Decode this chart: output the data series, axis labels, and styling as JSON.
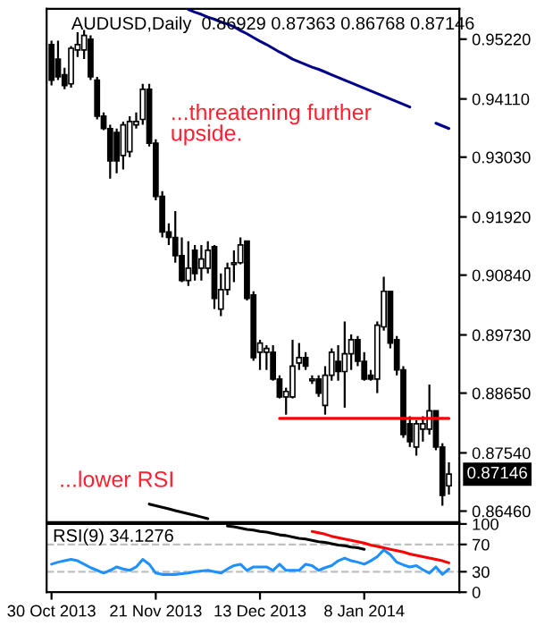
{
  "chart_data": [
    {
      "type": "candlestick",
      "title": "AUDUSD,Daily  0.86929 0.87363 0.86768 0.87146",
      "ohlc": [
        [
          0.9512,
          0.9519,
          0.9436,
          0.9446
        ],
        [
          0.9485,
          0.9519,
          0.9446,
          0.9452
        ],
        [
          0.9456,
          0.9469,
          0.9429,
          0.9436
        ],
        [
          0.9439,
          0.9509,
          0.9432,
          0.9505
        ],
        [
          0.9502,
          0.9535,
          0.9489,
          0.9512
        ],
        [
          0.9502,
          0.9539,
          0.9485,
          0.9529
        ],
        [
          0.9522,
          0.9529,
          0.9446,
          0.9452
        ],
        [
          0.9446,
          0.9452,
          0.9373,
          0.9379
        ],
        [
          0.9379,
          0.9386,
          0.9353,
          0.9356
        ],
        [
          0.9356,
          0.9363,
          0.9263,
          0.9296
        ],
        [
          0.9349,
          0.9356,
          0.9273,
          0.9296
        ],
        [
          0.9306,
          0.9369,
          0.928,
          0.9363
        ],
        [
          0.9313,
          0.9379,
          0.9303,
          0.9369
        ],
        [
          0.9363,
          0.9386,
          0.9356,
          0.9369
        ],
        [
          0.9373,
          0.9439,
          0.9363,
          0.9429
        ],
        [
          0.9429,
          0.9439,
          0.9323,
          0.9329
        ],
        [
          0.9329,
          0.9336,
          0.9223,
          0.923
        ],
        [
          0.923,
          0.924,
          0.9154,
          0.9164
        ],
        [
          0.9164,
          0.918,
          0.914,
          0.9154
        ],
        [
          0.9154,
          0.9203,
          0.9107,
          0.912
        ],
        [
          0.912,
          0.9154,
          0.9071,
          0.9074
        ],
        [
          0.9074,
          0.9147,
          0.9064,
          0.9097
        ],
        [
          0.913,
          0.914,
          0.9074,
          0.9087
        ],
        [
          0.9097,
          0.914,
          0.9074,
          0.9114
        ],
        [
          0.9097,
          0.9147,
          0.9087,
          0.913
        ],
        [
          0.9137,
          0.914,
          0.9021,
          0.9041
        ],
        [
          0.9021,
          0.9087,
          0.9008,
          0.9057
        ],
        [
          0.9057,
          0.9107,
          0.9047,
          0.9097
        ],
        [
          0.9104,
          0.913,
          0.9071,
          0.9107
        ],
        [
          0.9107,
          0.9154,
          0.9104,
          0.914
        ],
        [
          0.9147,
          0.9147,
          0.9037,
          0.9041
        ],
        [
          0.9047,
          0.9054,
          0.8925,
          0.8931
        ],
        [
          0.8941,
          0.8964,
          0.8908,
          0.8958
        ],
        [
          0.8941,
          0.8954,
          0.8908,
          0.8948
        ],
        [
          0.8941,
          0.8954,
          0.8888,
          0.8891
        ],
        [
          0.8891,
          0.8898,
          0.8855,
          0.8858
        ],
        [
          0.8858,
          0.8875,
          0.8825,
          0.8868
        ],
        [
          0.8858,
          0.8964,
          0.8855,
          0.8915
        ],
        [
          0.8921,
          0.8958,
          0.8908,
          0.8931
        ],
        [
          0.8931,
          0.8941,
          0.8908,
          0.8915
        ],
        [
          0.8888,
          0.8898,
          0.8882,
          0.8891
        ],
        [
          0.8891,
          0.8898,
          0.8858,
          0.8865
        ],
        [
          0.8842,
          0.8915,
          0.8825,
          0.8898
        ],
        [
          0.8898,
          0.8948,
          0.8888,
          0.8941
        ],
        [
          0.8924,
          0.8954,
          0.8888,
          0.8905
        ],
        [
          0.8905,
          0.8998,
          0.8838,
          0.8938
        ],
        [
          0.8938,
          0.8974,
          0.8908,
          0.8964
        ],
        [
          0.8964,
          0.8971,
          0.8915,
          0.8924
        ],
        [
          0.8924,
          0.8941,
          0.8888,
          0.8891
        ],
        [
          0.8898,
          0.8908,
          0.8888,
          0.8891
        ],
        [
          0.8891,
          0.8998,
          0.8865,
          0.8991
        ],
        [
          0.8988,
          0.9081,
          0.8981,
          0.9054
        ],
        [
          0.9054,
          0.9054,
          0.8948,
          0.8958
        ],
        [
          0.8964,
          0.8971,
          0.8898,
          0.8908
        ],
        [
          0.8908,
          0.8915,
          0.8782,
          0.8788
        ],
        [
          0.8808,
          0.8822,
          0.8765,
          0.8775
        ],
        [
          0.8765,
          0.8815,
          0.8749,
          0.8808
        ],
        [
          0.8798,
          0.8822,
          0.8775,
          0.8808
        ],
        [
          0.8798,
          0.8881,
          0.8788,
          0.8832
        ],
        [
          0.8832,
          0.8832,
          0.8759,
          0.8765
        ],
        [
          0.8765,
          0.8772,
          0.8656,
          0.8675
        ],
        [
          0.86929,
          0.87363,
          0.86768,
          0.87146
        ]
      ],
      "ylim": [
        0.86256,
        0.95784
      ],
      "yticks": [
        {
          "value": 0.9522,
          "label": "0.95220"
        },
        {
          "value": 0.9411,
          "label": "0.94110"
        },
        {
          "value": 0.9303,
          "label": "0.93030"
        },
        {
          "value": 0.9192,
          "label": "0.91920"
        },
        {
          "value": 0.9084,
          "label": "0.90840"
        },
        {
          "value": 0.8973,
          "label": "0.89730"
        },
        {
          "value": 0.8865,
          "label": "0.88650"
        },
        {
          "value": 0.8754,
          "label": "0.87540"
        },
        {
          "value": 0.8646,
          "label": "0.86460"
        }
      ],
      "tick_labels": "y",
      "series": [
        {
          "type": "line",
          "color": "#00008b",
          "values": [
            null,
            null,
            null,
            null,
            null,
            null,
            null,
            null,
            null,
            null,
            null,
            null,
            null,
            null,
            null,
            null,
            null,
            null,
            null,
            null,
            null,
            0.9577,
            0.9572,
            0.9568,
            0.9563,
            0.9559,
            0.9554,
            0.955,
            0.9545,
            0.9538,
            0.9532,
            0.9525,
            0.9518,
            0.9512,
            0.9505,
            0.9498,
            0.9492,
            0.9485,
            0.948,
            0.9475,
            0.947,
            0.9466,
            0.9461,
            0.9456,
            0.9451,
            0.9446,
            0.9441,
            0.9436,
            0.9431,
            0.9426,
            0.9421,
            0.9416,
            0.9411,
            0.9406,
            0.9401,
            0.9396,
            null,
            null,
            null,
            null,
            null,
            null
          ]
        },
        {
          "type": "line",
          "color": "#00008b",
          "values": [
            null,
            null,
            null,
            null,
            null,
            null,
            null,
            null,
            null,
            null,
            null,
            null,
            null,
            null,
            null,
            null,
            null,
            null,
            null,
            null,
            null,
            null,
            null,
            null,
            null,
            null,
            null,
            null,
            null,
            null,
            null,
            null,
            null,
            null,
            null,
            null,
            null,
            null,
            null,
            null,
            null,
            null,
            null,
            null,
            null,
            null,
            null,
            null,
            null,
            null,
            null,
            null,
            null,
            null,
            null,
            null,
            null,
            null,
            null,
            0.9366,
            0.9361,
            0.9356
          ]
        },
        {
          "type": "line",
          "color": "#ff0000",
          "values": [
            null,
            null,
            null,
            null,
            null,
            null,
            null,
            null,
            null,
            null,
            null,
            null,
            null,
            null,
            null,
            null,
            null,
            null,
            null,
            null,
            null,
            null,
            null,
            null,
            null,
            null,
            null,
            null,
            null,
            null,
            null,
            null,
            null,
            null,
            null,
            0.8818,
            0.8818,
            0.8818,
            0.8818,
            0.8818,
            0.8818,
            0.8818,
            0.8818,
            0.8818,
            0.8818,
            0.8818,
            0.8818,
            0.8818,
            0.8818,
            0.8818,
            0.8818,
            0.8818,
            0.8818,
            0.8818,
            0.8818,
            0.8818,
            0.8818,
            0.8818,
            0.8818,
            0.8818,
            0.8818,
            0.8818
          ]
        },
        {
          "type": "line",
          "color": "#000000",
          "values": [
            null,
            null,
            null,
            null,
            null,
            null,
            null,
            null,
            null,
            null,
            null,
            null,
            null,
            null,
            null,
            0.8659,
            0.8656,
            0.8653,
            0.865,
            0.8647,
            0.8644,
            0.8641,
            0.8638,
            0.8635,
            0.8632,
            null,
            null,
            null,
            null,
            null,
            null,
            null,
            null,
            null,
            null,
            null,
            null,
            null,
            null,
            null,
            null,
            null,
            null,
            null,
            null,
            null,
            null,
            null,
            null,
            null,
            null,
            null,
            null,
            null,
            null,
            null,
            null,
            null,
            null,
            null,
            null,
            null
          ]
        }
      ],
      "annotations": [
        "...threatening further\nupside.",
        "...lower RSI",
        "0.87146"
      ]
    },
    {
      "type": "line",
      "title": "RSI(9) 34.1276",
      "categories": [
        "30 Oct 2013",
        null,
        null,
        null,
        null,
        null,
        null,
        null,
        null,
        null,
        null,
        null,
        null,
        null,
        null,
        null,
        "21 Nov 2013",
        null,
        null,
        null,
        null,
        null,
        null,
        null,
        null,
        null,
        null,
        null,
        null,
        null,
        null,
        null,
        "13 Dec 2013",
        null,
        null,
        null,
        null,
        null,
        null,
        null,
        null,
        null,
        null,
        null,
        null,
        null,
        null,
        null,
        "8 Jan 2014",
        null,
        null,
        null,
        null,
        null,
        null,
        null,
        null,
        null,
        null,
        null,
        null,
        null
      ],
      "ylim": [
        0,
        100
      ],
      "yticks": [
        100,
        70,
        30,
        0
      ],
      "series": [
        {
          "color": "#1e90ff",
          "values": [
            41,
            44,
            46,
            48,
            46,
            41,
            36,
            32,
            28,
            32,
            37,
            34,
            32,
            37,
            48,
            41,
            28,
            26,
            26,
            26,
            27,
            28,
            30,
            31,
            32,
            30,
            28,
            34,
            39,
            41,
            32,
            37,
            37,
            37,
            32,
            41,
            32,
            32,
            32,
            41,
            39,
            32,
            36,
            39,
            46,
            50,
            46,
            44,
            41,
            46,
            52,
            62,
            55,
            44,
            40,
            37,
            39,
            33,
            28,
            37,
            26,
            34
          ]
        },
        {
          "color": "#000000",
          "values": [
            null,
            null,
            null,
            null,
            null,
            null,
            null,
            null,
            null,
            null,
            null,
            null,
            null,
            null,
            null,
            null,
            null,
            null,
            null,
            null,
            null,
            null,
            null,
            null,
            null,
            null,
            null,
            97,
            96,
            94,
            92,
            91,
            89,
            88,
            86,
            84,
            83,
            81,
            79,
            78,
            76,
            74,
            73,
            71,
            69,
            68,
            66,
            65,
            63,
            null,
            null,
            null,
            null,
            null,
            null,
            null,
            null,
            null,
            null,
            null,
            null,
            null
          ]
        },
        {
          "color": "#ff0000",
          "values": [
            null,
            null,
            null,
            null,
            null,
            null,
            null,
            null,
            null,
            null,
            null,
            null,
            null,
            null,
            null,
            null,
            null,
            null,
            null,
            null,
            null,
            null,
            null,
            null,
            null,
            null,
            null,
            null,
            null,
            null,
            null,
            null,
            null,
            null,
            null,
            null,
            null,
            null,
            null,
            null,
            89,
            87,
            85,
            82,
            80,
            78,
            76,
            74,
            72,
            69,
            67,
            65,
            63,
            61,
            59,
            56,
            54,
            52,
            50,
            48,
            46,
            43
          ]
        }
      ],
      "ref_lines": [
        {
          "axis": "y",
          "value": 70,
          "color": "#c0c0c0",
          "line_style": "dashed"
        },
        {
          "axis": "y",
          "value": 30,
          "color": "#c0c0c0",
          "line_style": "dashed"
        }
      ]
    }
  ]
}
